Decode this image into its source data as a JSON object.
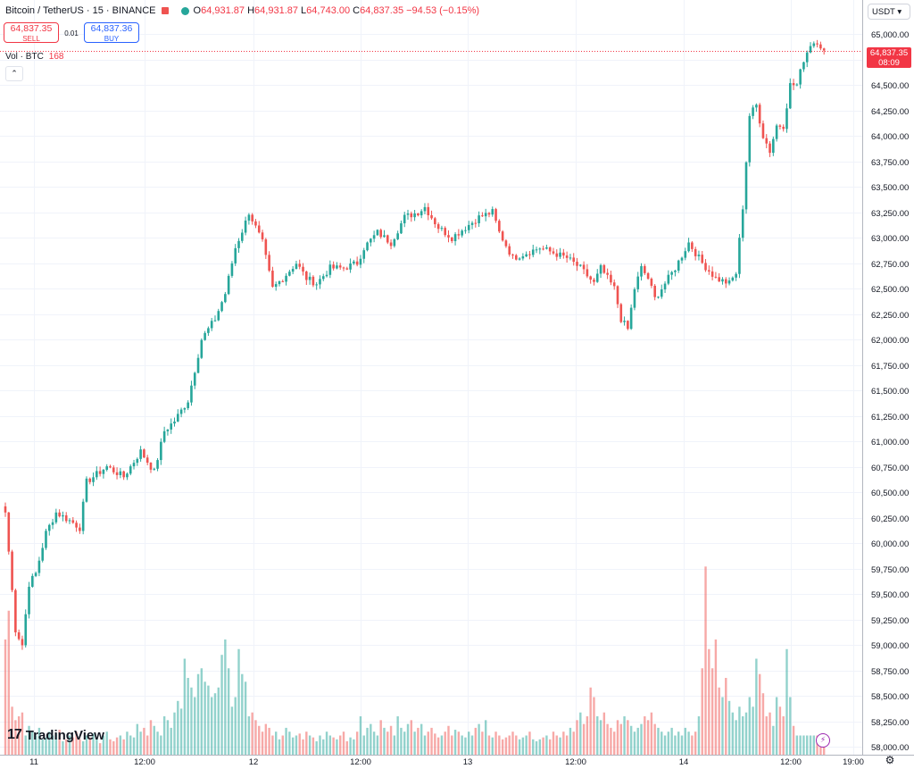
{
  "legend": {
    "symbol": "Bitcoin / TetherUS · 15 · BINANCE",
    "open_label": "O",
    "open": "64,931.87",
    "high_label": "H",
    "high": "64,931.87",
    "low_label": "L",
    "low": "64,743.00",
    "close_label": "C",
    "close": "64,837.35",
    "change": "−94.53 (−0.15%)"
  },
  "trade": {
    "sell_price": "64,837.35",
    "sell_label": "SELL",
    "spread": "0.01",
    "buy_price": "64,837.36",
    "buy_label": "BUY"
  },
  "volume": {
    "label": "Vol · BTC",
    "value": "168"
  },
  "currency": "USDT",
  "price_tag": {
    "price": "64,837.35",
    "countdown": "08:09"
  },
  "brand": "TradingView",
  "colors": {
    "up": "#26a69a",
    "down": "#ef5350",
    "grid": "#f0f3fa",
    "sell": "#f23645",
    "buy": "#2962ff"
  },
  "icons": {
    "collapse": "chevron-up-icon",
    "settings": "gear-icon",
    "alert": "bolt-icon"
  },
  "chart_data": {
    "type": "candlestick",
    "interval": "15",
    "y_ticks": [
      "65,000.00",
      "64,750.00",
      "64,500.00",
      "64,250.00",
      "64,000.00",
      "63,750.00",
      "63,500.00",
      "63,250.00",
      "63,000.00",
      "62,750.00",
      "62,500.00",
      "62,250.00",
      "62,000.00",
      "61,750.00",
      "61,500.00",
      "61,250.00",
      "61,000.00",
      "60,750.00",
      "60,500.00",
      "60,250.00",
      "60,000.00",
      "59,750.00",
      "59,500.00",
      "59,250.00",
      "59,000.00",
      "58,750.00",
      "58,500.00",
      "58,250.00",
      "58,000.00"
    ],
    "ylim": [
      58000,
      65000
    ],
    "x_ticks": [
      "11",
      "12:00",
      "12",
      "12:00",
      "13",
      "12:00",
      "14",
      "12:00",
      "19:00"
    ],
    "last_price": 64837.35,
    "anchors": [
      [
        0,
        60300
      ],
      [
        3,
        59150
      ],
      [
        5,
        59000
      ],
      [
        7,
        59600
      ],
      [
        9,
        59700
      ],
      [
        12,
        60100
      ],
      [
        15,
        60300
      ],
      [
        20,
        60200
      ],
      [
        22,
        60150
      ],
      [
        24,
        60600
      ],
      [
        30,
        60750
      ],
      [
        35,
        60650
      ],
      [
        40,
        60900
      ],
      [
        44,
        60700
      ],
      [
        47,
        61100
      ],
      [
        50,
        61200
      ],
      [
        54,
        61400
      ],
      [
        58,
        62000
      ],
      [
        62,
        62200
      ],
      [
        65,
        62450
      ],
      [
        68,
        62900
      ],
      [
        71,
        63150
      ],
      [
        72,
        63250
      ],
      [
        76,
        62950
      ],
      [
        79,
        62500
      ],
      [
        82,
        62600
      ],
      [
        86,
        62750
      ],
      [
        89,
        62600
      ],
      [
        92,
        62550
      ],
      [
        96,
        62700
      ],
      [
        100,
        62700
      ],
      [
        104,
        62750
      ],
      [
        106,
        62900
      ],
      [
        110,
        63050
      ],
      [
        114,
        62950
      ],
      [
        118,
        63200
      ],
      [
        122,
        63250
      ],
      [
        124,
        63300
      ],
      [
        128,
        63100
      ],
      [
        132,
        63000
      ],
      [
        136,
        63100
      ],
      [
        140,
        63200
      ],
      [
        144,
        63250
      ],
      [
        146,
        63050
      ],
      [
        150,
        62800
      ],
      [
        154,
        62850
      ],
      [
        158,
        62900
      ],
      [
        162,
        62850
      ],
      [
        166,
        62800
      ],
      [
        170,
        62700
      ],
      [
        174,
        62550
      ],
      [
        176,
        62700
      ],
      [
        180,
        62500
      ],
      [
        182,
        62200
      ],
      [
        184,
        62100
      ],
      [
        186,
        62500
      ],
      [
        188,
        62700
      ],
      [
        190,
        62600
      ],
      [
        192,
        62400
      ],
      [
        194,
        62500
      ],
      [
        198,
        62700
      ],
      [
        202,
        62950
      ],
      [
        206,
        62750
      ],
      [
        210,
        62600
      ],
      [
        214,
        62550
      ],
      [
        216,
        62650
      ],
      [
        218,
        63300
      ],
      [
        220,
        64200
      ],
      [
        222,
        64300
      ],
      [
        224,
        64000
      ],
      [
        226,
        63850
      ],
      [
        228,
        64100
      ],
      [
        230,
        64100
      ],
      [
        232,
        64500
      ],
      [
        234,
        64500
      ],
      [
        236,
        64750
      ],
      [
        238,
        64900
      ],
      [
        240,
        64930
      ],
      [
        242,
        64837
      ]
    ],
    "volumes": [
      0.6,
      0.75,
      0.25,
      0.18,
      0.2,
      0.22,
      0.1,
      0.15,
      0.12,
      0.1,
      0.14,
      0.08,
      0.09,
      0.12,
      0.1,
      0.11,
      0.13,
      0.07,
      0.08,
      0.1,
      0.09,
      0.12,
      0.08,
      0.07,
      0.1,
      0.09,
      0.11,
      0.08,
      0.06,
      0.1,
      0.12,
      0.08,
      0.07,
      0.09,
      0.1,
      0.08,
      0.12,
      0.1,
      0.09,
      0.16,
      0.12,
      0.14,
      0.1,
      0.18,
      0.15,
      0.12,
      0.1,
      0.2,
      0.18,
      0.14,
      0.22,
      0.28,
      0.24,
      0.5,
      0.4,
      0.35,
      0.3,
      0.42,
      0.45,
      0.38,
      0.36,
      0.3,
      0.32,
      0.35,
      0.52,
      0.6,
      0.45,
      0.25,
      0.3,
      0.55,
      0.42,
      0.38,
      0.2,
      0.22,
      0.18,
      0.15,
      0.12,
      0.16,
      0.14,
      0.1,
      0.12,
      0.08,
      0.1,
      0.14,
      0.12,
      0.09,
      0.1,
      0.11,
      0.08,
      0.12,
      0.1,
      0.09,
      0.07,
      0.1,
      0.08,
      0.12,
      0.1,
      0.09,
      0.08,
      0.1,
      0.12,
      0.07,
      0.09,
      0.08,
      0.12,
      0.2,
      0.1,
      0.14,
      0.16,
      0.12,
      0.1,
      0.18,
      0.14,
      0.12,
      0.15,
      0.1,
      0.2,
      0.14,
      0.12,
      0.16,
      0.18,
      0.12,
      0.14,
      0.16,
      0.1,
      0.12,
      0.14,
      0.11,
      0.09,
      0.1,
      0.12,
      0.15,
      0.1,
      0.13,
      0.12,
      0.1,
      0.09,
      0.12,
      0.1,
      0.14,
      0.16,
      0.12,
      0.18,
      0.1,
      0.09,
      0.12,
      0.1,
      0.08,
      0.09,
      0.1,
      0.12,
      0.1,
      0.08,
      0.09,
      0.1,
      0.12,
      0.08,
      0.07,
      0.08,
      0.09,
      0.1,
      0.08,
      0.12,
      0.1,
      0.09,
      0.12,
      0.1,
      0.14,
      0.12,
      0.18,
      0.22,
      0.16,
      0.2,
      0.35,
      0.3,
      0.2,
      0.18,
      0.22,
      0.16,
      0.14,
      0.12,
      0.18,
      0.16,
      0.2,
      0.18,
      0.15,
      0.12,
      0.14,
      0.16,
      0.2,
      0.18,
      0.22,
      0.16,
      0.14,
      0.12,
      0.1,
      0.12,
      0.14,
      0.1,
      0.12,
      0.1,
      0.14,
      0.12,
      0.1,
      0.12,
      0.2,
      0.45,
      0.98,
      0.55,
      0.45,
      0.6,
      0.35,
      0.3,
      0.4,
      0.28,
      0.22,
      0.18,
      0.25,
      0.2,
      0.22,
      0.3,
      0.25,
      0.5,
      0.42,
      0.32,
      0.2,
      0.22,
      0.15,
      0.3,
      0.25,
      0.2,
      0.55,
      0.3,
      0.15
    ]
  }
}
